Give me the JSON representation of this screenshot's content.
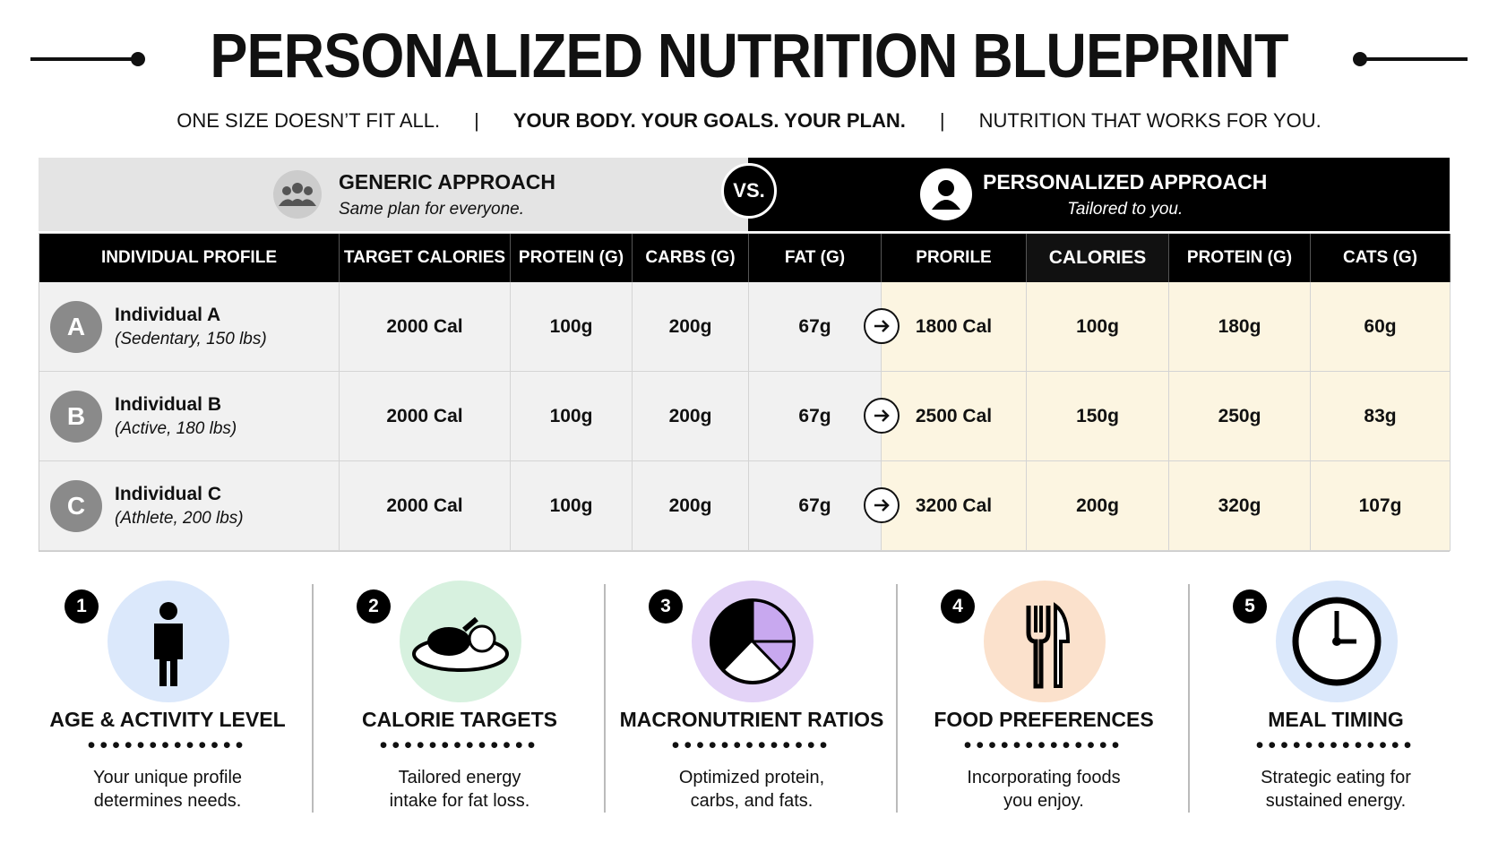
{
  "header": {
    "title": "PERSONALIZED NUTRITION BLUEPRINT",
    "taglines": [
      "ONE SIZE DOESN’T FIT ALL.",
      "YOUR BODY. YOUR GOALS. YOUR PLAN.",
      "NUTRITION THAT WORKS FOR YOU."
    ]
  },
  "comparison": {
    "generic": {
      "title": "GENERIC APPROACH",
      "subtitle": "Same plan for everyone."
    },
    "vs": "VS.",
    "personalized": {
      "title": "PERSONALIZED APPROACH",
      "subtitle": "Tailored to you."
    }
  },
  "table": {
    "columns": [
      "INDIVIDUAL PROFILE",
      "TARGET CALORIES",
      "PROTEIN (G)",
      "CARBS (G)",
      "FAT (G)",
      "PRORILE",
      "CALORIES",
      "PROTEIN (G)",
      "CATS (G)"
    ],
    "rows": [
      {
        "badge": "A",
        "name": "Individual A",
        "detail": "(Sedentary, 150 lbs)",
        "cells": [
          "2000 Cal",
          "100g",
          "200g",
          "67g",
          "1800 Cal",
          "100g",
          "180g",
          "60g"
        ]
      },
      {
        "badge": "B",
        "name": "Individual B",
        "detail": "(Active, 180 lbs)",
        "cells": [
          "2000 Cal",
          "100g",
          "200g",
          "67g",
          "2500 Cal",
          "150g",
          "250g",
          "83g"
        ]
      },
      {
        "badge": "C",
        "name": "Individual C",
        "detail": "(Athlete, 200 lbs)",
        "cells": [
          "2000 Cal",
          "100g",
          "200g",
          "67g",
          "3200 Cal",
          "200g",
          "320g",
          "107g"
        ]
      }
    ]
  },
  "factors": [
    {
      "number": "1",
      "title": "AGE & ACTIVITY LEVEL",
      "description": "Your unique profile determines needs."
    },
    {
      "number": "2",
      "title": "CALORIE TARGETS",
      "description": "Tailored energy intake for fat loss."
    },
    {
      "number": "3",
      "title": "MACRONUTRIENT RATIOS",
      "description": "Optimized protein, carbs, and fats."
    },
    {
      "number": "4",
      "title": "FOOD PREFERENCES",
      "description": "Incorporating foods you enjoy."
    },
    {
      "number": "5",
      "title": "MEAL TIMING",
      "description": "Strategic eating for sustained energy."
    }
  ]
}
